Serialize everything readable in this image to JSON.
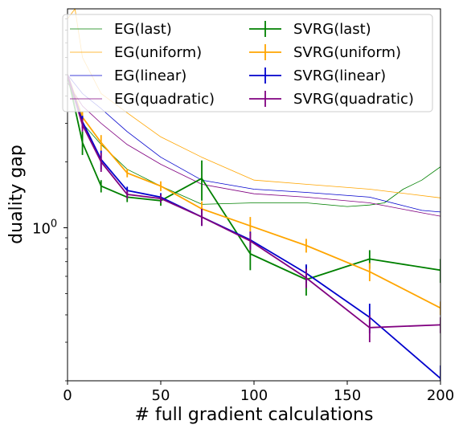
{
  "chart_data": {
    "type": "line",
    "xlabel": "# full gradient calculations",
    "ylabel": "duality gap",
    "xlim": [
      0,
      200
    ],
    "ylim": [
      0.2,
      10
    ],
    "yscale": "log",
    "grid": false,
    "legend_position": "top",
    "x_ticks": [
      {
        "value": 0,
        "label": "0"
      },
      {
        "value": 50,
        "label": "50"
      },
      {
        "value": 100,
        "label": "100"
      },
      {
        "value": 150,
        "label": "150"
      },
      {
        "value": 200,
        "label": "200"
      }
    ],
    "y_ticks": [
      {
        "value": 1,
        "label": "10",
        "exponent": "0"
      }
    ],
    "series": [
      {
        "name": "EG(last)",
        "style": "thin",
        "color": "#008000",
        "x": [
          0,
          8,
          18,
          32,
          50,
          72,
          100,
          128,
          150,
          162,
          170,
          180,
          190,
          200
        ],
        "y": [
          4.8,
          3.0,
          2.4,
          1.85,
          1.55,
          1.28,
          1.3,
          1.3,
          1.25,
          1.27,
          1.3,
          1.5,
          1.65,
          1.9
        ]
      },
      {
        "name": "EG(uniform)",
        "style": "thin",
        "color": "#FFA500",
        "x": [
          0,
          4,
          8,
          18,
          32,
          50,
          72,
          100,
          128,
          162,
          200
        ],
        "y": [
          9.0,
          10.0,
          6.0,
          4.1,
          3.35,
          2.6,
          2.1,
          1.65,
          1.58,
          1.5,
          1.37
        ]
      },
      {
        "name": "EG(linear)",
        "style": "thin",
        "color": "#0000CD",
        "x": [
          0,
          8,
          18,
          32,
          50,
          72,
          100,
          128,
          162,
          190,
          200
        ],
        "y": [
          5.0,
          4.1,
          3.5,
          2.75,
          2.1,
          1.65,
          1.5,
          1.45,
          1.38,
          1.2,
          1.18
        ]
      },
      {
        "name": "EG(quadratic)",
        "style": "thin",
        "color": "#800080",
        "x": [
          0,
          8,
          18,
          32,
          50,
          72,
          100,
          128,
          162,
          190,
          200
        ],
        "y": [
          4.6,
          3.6,
          3.0,
          2.4,
          1.95,
          1.58,
          1.43,
          1.38,
          1.3,
          1.17,
          1.13
        ]
      },
      {
        "name": "SVRG(last)",
        "style": "errorbar",
        "color": "#008000",
        "x": [
          0,
          8,
          18,
          32,
          50,
          72,
          98,
          128,
          162,
          200
        ],
        "y": [
          5.0,
          2.45,
          1.55,
          1.38,
          1.33,
          1.68,
          0.76,
          0.58,
          0.72,
          0.64
        ],
        "err": [
          0.05,
          0.3,
          0.1,
          0.07,
          0.07,
          0.35,
          0.12,
          0.09,
          0.07,
          0.08
        ]
      },
      {
        "name": "SVRG(uniform)",
        "style": "errorbar",
        "color": "#FFA500",
        "x": [
          0,
          8,
          18,
          32,
          50,
          72,
          98,
          128,
          162,
          200
        ],
        "y": [
          5.0,
          3.2,
          2.45,
          1.78,
          1.55,
          1.22,
          1.02,
          0.83,
          0.63,
          0.43
        ],
        "err": [
          0.05,
          0.2,
          0.2,
          0.08,
          0.08,
          0.1,
          0.1,
          0.06,
          0.06,
          0.03
        ]
      },
      {
        "name": "SVRG(linear)",
        "style": "errorbar",
        "color": "#0000CD",
        "x": [
          0,
          8,
          18,
          32,
          50,
          72,
          98,
          128,
          162,
          200
        ],
        "y": [
          5.0,
          3.05,
          2.05,
          1.48,
          1.38,
          1.12,
          0.88,
          0.62,
          0.39,
          0.205
        ],
        "err": [
          0.05,
          0.2,
          0.2,
          0.06,
          0.06,
          0.1,
          0.08,
          0.06,
          0.06,
          0.03
        ]
      },
      {
        "name": "SVRG(quadratic)",
        "style": "errorbar",
        "color": "#800080",
        "x": [
          0,
          8,
          18,
          32,
          50,
          72,
          98,
          128,
          162,
          200
        ],
        "y": [
          5.0,
          2.95,
          2.0,
          1.42,
          1.36,
          1.12,
          0.87,
          0.59,
          0.35,
          0.36
        ],
        "err": [
          0.05,
          0.2,
          0.2,
          0.06,
          0.06,
          0.1,
          0.08,
          0.06,
          0.05,
          0.03
        ]
      }
    ]
  }
}
